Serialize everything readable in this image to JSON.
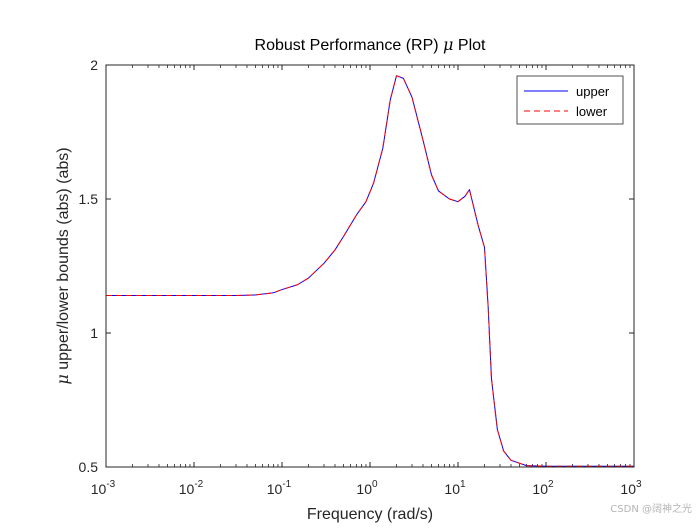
{
  "chart_data": {
    "type": "line",
    "title_prefix": "Robust Performance (RP) ",
    "title_symbol": "μ",
    "title_suffix": " Plot",
    "xlabel": "Frequency (rad/s)",
    "ylabel_symbol": "μ",
    "ylabel_rest": " upper/lower bounds (abs) (abs)",
    "xscale": "log",
    "xlim": [
      0.001,
      1000
    ],
    "ylim": [
      0.5,
      2
    ],
    "grid": false,
    "legend_position": "top-right",
    "xticks": [
      {
        "value": 0.001,
        "base": "10",
        "exp": "-3"
      },
      {
        "value": 0.01,
        "base": "10",
        "exp": "-2"
      },
      {
        "value": 0.1,
        "base": "10",
        "exp": "-1"
      },
      {
        "value": 1,
        "base": "10",
        "exp": "0"
      },
      {
        "value": 10,
        "base": "10",
        "exp": "1"
      },
      {
        "value": 100,
        "base": "10",
        "exp": "2"
      },
      {
        "value": 1000,
        "base": "10",
        "exp": "3"
      }
    ],
    "yticks": [
      {
        "value": 0.5,
        "label": "0.5"
      },
      {
        "value": 1,
        "label": "1"
      },
      {
        "value": 1.5,
        "label": "1.5"
      },
      {
        "value": 2,
        "label": "2"
      }
    ],
    "x": [
      0.001,
      0.003,
      0.01,
      0.03,
      0.05,
      0.08,
      0.1,
      0.15,
      0.2,
      0.3,
      0.4,
      0.5,
      0.7,
      0.9,
      1.1,
      1.4,
      1.7,
      2.0,
      2.4,
      3.0,
      4.0,
      5.0,
      6.0,
      8.0,
      10,
      12,
      13.5,
      17,
      20,
      22,
      24,
      28,
      33,
      40,
      60,
      100,
      200,
      1000
    ],
    "series": [
      {
        "name": "upper",
        "color": "#0000ff",
        "dash": "solid",
        "values": [
          1.14,
          1.14,
          1.14,
          1.14,
          1.142,
          1.15,
          1.162,
          1.18,
          1.205,
          1.26,
          1.31,
          1.36,
          1.44,
          1.49,
          1.56,
          1.69,
          1.87,
          1.96,
          1.95,
          1.88,
          1.72,
          1.59,
          1.53,
          1.5,
          1.49,
          1.51,
          1.535,
          1.4,
          1.32,
          1.1,
          0.83,
          0.64,
          0.56,
          0.525,
          0.505,
          0.503,
          0.503,
          0.503
        ]
      },
      {
        "name": "lower",
        "color": "#ff0000",
        "dash": "dashed",
        "values": [
          1.14,
          1.14,
          1.14,
          1.14,
          1.142,
          1.15,
          1.162,
          1.18,
          1.205,
          1.26,
          1.31,
          1.36,
          1.44,
          1.49,
          1.56,
          1.69,
          1.87,
          1.96,
          1.95,
          1.88,
          1.72,
          1.59,
          1.53,
          1.5,
          1.49,
          1.51,
          1.535,
          1.4,
          1.32,
          1.1,
          0.83,
          0.64,
          0.56,
          0.525,
          0.505,
          0.503,
          0.503,
          0.503
        ]
      }
    ]
  },
  "watermark": "CSDN @阔神之光"
}
